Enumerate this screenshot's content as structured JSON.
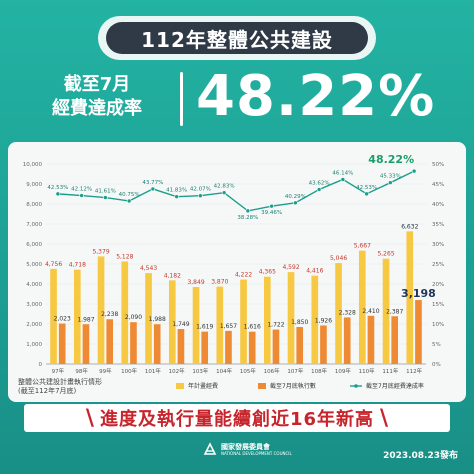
{
  "title": "112年整體公共建設",
  "subtitle_line1": "截至7月",
  "subtitle_line2": "經費達成率",
  "headline_value": "48.22%",
  "banner": "進度及執行量能續創近16年新高",
  "banner_left": "\\",
  "banner_right": "\\",
  "note_line1": "整體公共建設計畫執行情形",
  "note_line2": "(截至112年7月底)",
  "org_name": "國家發展委員會",
  "org_name_en": "NATIONAL DEVELOPMENT COUNCIL",
  "date": "2023.08.23發布",
  "colors": {
    "background": "#1fa79a",
    "planned_bar": "#f7c842",
    "executed_bar": "#ef8a34",
    "rate_line": "#1b9e8a",
    "title_bg": "#2f3a46",
    "banner_text": "#c7242b"
  },
  "chart_data": {
    "type": "bar",
    "categories": [
      "97年",
      "98年",
      "99年",
      "100年",
      "101年",
      "102年",
      "103年",
      "104年",
      "105年",
      "106年",
      "107年",
      "108年",
      "109年",
      "110年",
      "111年",
      "112年"
    ],
    "series": [
      {
        "name": "年計畫經費",
        "values": [
          4756,
          4718,
          5379,
          5128,
          4543,
          4182,
          3849,
          3870,
          4222,
          4365,
          4592,
          4416,
          5046,
          5667,
          5265,
          6632
        ]
      },
      {
        "name": "截至7月底執行數",
        "values": [
          2023,
          1987,
          2238,
          2090,
          1988,
          1749,
          1619,
          1657,
          1616,
          1722,
          1850,
          1926,
          2328,
          2410,
          2387,
          3198
        ]
      },
      {
        "name": "截至7月底經費達成率",
        "type": "line",
        "axis": "right",
        "values": [
          42.53,
          42.12,
          41.61,
          40.75,
          43.77,
          41.83,
          42.07,
          42.83,
          38.28,
          39.46,
          40.29,
          43.62,
          46.14,
          42.53,
          45.33,
          48.22
        ]
      }
    ],
    "left_axis": {
      "ylim": [
        0,
        10000
      ],
      "ticks": [
        "0",
        "1,000",
        "2,000",
        "3,000",
        "4,000",
        "5,000",
        "6,000",
        "7,000",
        "8,000",
        "9,000",
        "10,000"
      ]
    },
    "right_axis": {
      "ylim": [
        0,
        50
      ],
      "ticks": [
        "0%",
        "5%",
        "10%",
        "15%",
        "20%",
        "25%",
        "30%",
        "35%",
        "40%",
        "45%",
        "50%"
      ]
    },
    "planned_labels": [
      "4,756",
      "4,718",
      "5,379",
      "5,128",
      "4,543",
      "4,182",
      "3,849",
      "3,870",
      "4,222",
      "4,365",
      "4,592",
      "4,416",
      "5,046",
      "5,667",
      "5,265",
      "6,632"
    ],
    "executed_labels": [
      "2,023",
      "1,987",
      "2,238",
      "2,090",
      "1,988",
      "1,749",
      "1,619",
      "1,657",
      "1,616",
      "1,722",
      "1,850",
      "1,926",
      "2,328",
      "2,410",
      "2,387",
      "3,198"
    ],
    "rate_labels": [
      "42.53%",
      "42.12%",
      "41.61%",
      "40.75%",
      "43.77%",
      "41.83%",
      "42.07%",
      "42.83%",
      "38.28%",
      "39.46%",
      "40.29%",
      "43.62%",
      "46.14%",
      "42.53%",
      "45.33%",
      "48.22%"
    ],
    "legend": [
      "年計畫經費",
      "截至7月底執行數",
      "截至7月底經費達成率"
    ],
    "legend_position": "bottom",
    "grid": true
  }
}
